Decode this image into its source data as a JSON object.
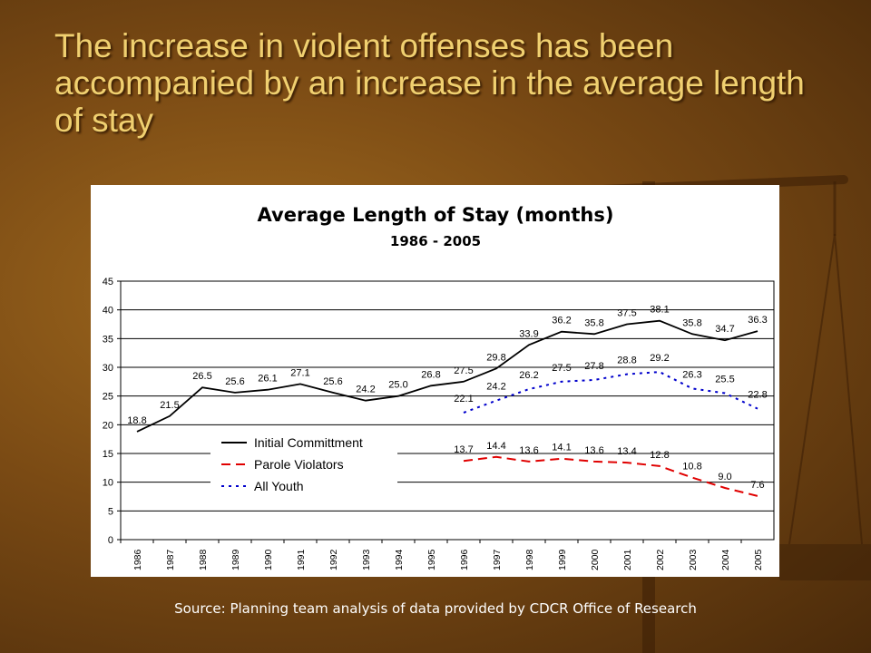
{
  "slide": {
    "title": "The increase in violent offenses has been accompanied by an increase in the average length of stay",
    "source": "Source: Planning team analysis of data provided by CDCR Office of Research"
  },
  "chart_data": {
    "type": "line",
    "title": "Average Length of Stay (months)",
    "subtitle": "1986 - 2005",
    "xlabel": "",
    "ylabel": "",
    "ylim": [
      0,
      45
    ],
    "yticks": [
      0,
      5,
      10,
      15,
      20,
      25,
      30,
      35,
      40,
      45
    ],
    "grid": true,
    "legend": "middle-left",
    "x": [
      "1986",
      "1987",
      "1988",
      "1989",
      "1990",
      "1991",
      "1992",
      "1993",
      "1994",
      "1995",
      "1996",
      "1997",
      "1998",
      "1999",
      "2000",
      "2001",
      "2002",
      "2003",
      "2004",
      "2005"
    ],
    "series": [
      {
        "name": "Initial Committment",
        "color": "#000000",
        "style": "solid",
        "values": [
          18.8,
          21.5,
          26.5,
          25.6,
          26.1,
          27.1,
          25.6,
          24.2,
          25.0,
          26.8,
          27.5,
          29.8,
          33.9,
          36.2,
          35.8,
          37.5,
          38.1,
          35.8,
          34.7,
          36.3
        ]
      },
      {
        "name": "Parole Violators",
        "color": "#e00000",
        "style": "dashed",
        "values": [
          null,
          null,
          null,
          null,
          null,
          null,
          null,
          null,
          null,
          null,
          13.7,
          14.4,
          13.6,
          14.1,
          13.6,
          13.4,
          12.8,
          10.8,
          9.0,
          7.6
        ]
      },
      {
        "name": "All Youth",
        "color": "#0000cc",
        "style": "dotted",
        "values": [
          null,
          null,
          null,
          null,
          null,
          null,
          null,
          null,
          null,
          null,
          22.1,
          24.2,
          26.2,
          27.5,
          27.8,
          28.8,
          29.2,
          26.3,
          25.5,
          22.8
        ]
      }
    ]
  }
}
